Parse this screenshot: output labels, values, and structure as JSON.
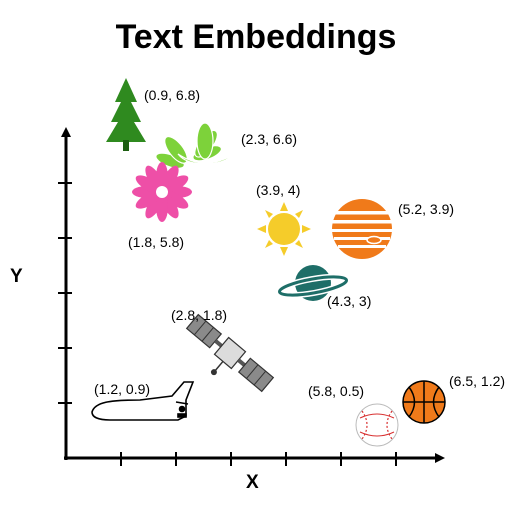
{
  "title": "Text Embeddings",
  "axes": {
    "x_label": "X",
    "y_label": "Y"
  },
  "items": [
    {
      "label": "(0.9, 6.8)",
      "icon": "pine-tree-icon",
      "color": "#2f8a1f"
    },
    {
      "label": "(2.3, 6.6)",
      "icon": "lotus-icon",
      "color": "#7dd23a"
    },
    {
      "label": "(1.8, 5.8)",
      "icon": "flower-icon",
      "color": "#ee4fa7"
    },
    {
      "label": "(3.9, 4)",
      "icon": "sun-icon",
      "color": "#f5cc2a"
    },
    {
      "label": "(5.2, 3.9)",
      "icon": "jupiter-icon",
      "color": "#f07a1a"
    },
    {
      "label": "(4.3, 3)",
      "icon": "saturn-icon",
      "color": "#1e6e68"
    },
    {
      "label": "(2.8, 1.8)",
      "icon": "satellite-icon",
      "color": "#8a8a8a"
    },
    {
      "label": "(1.2, 0.9)",
      "icon": "space-shuttle-icon",
      "color": "#000000"
    },
    {
      "label": "(5.8, 0.5)",
      "icon": "baseball-icon",
      "color": "#d83030"
    },
    {
      "label": "(6.5, 1.2)",
      "icon": "basketball-icon",
      "color": "#f07a1a"
    }
  ]
}
